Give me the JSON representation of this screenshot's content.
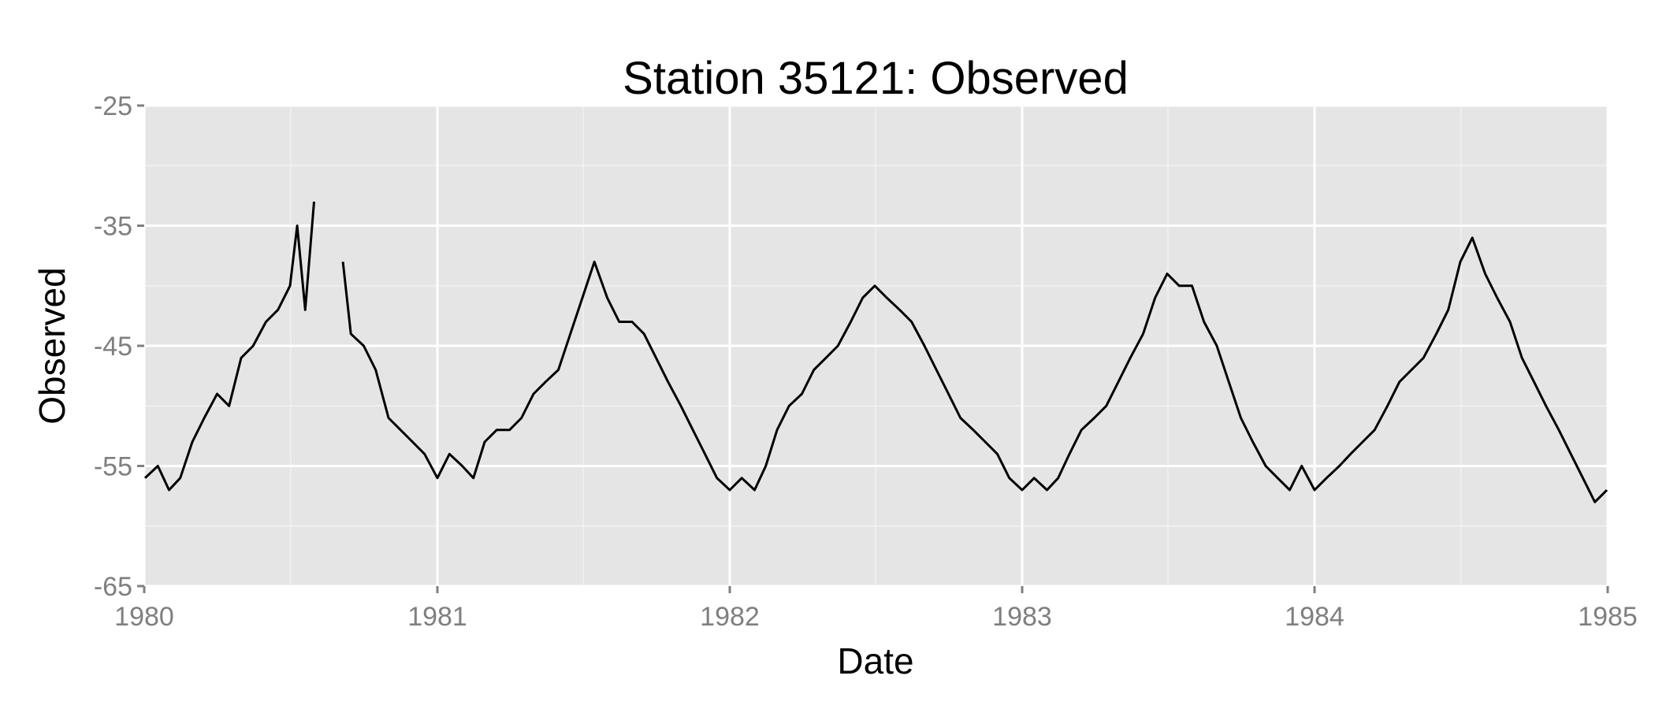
{
  "chart_data": {
    "type": "line",
    "title": "Station 35121: Observed",
    "xlabel": "Date",
    "ylabel": "Observed",
    "x_ticks": [
      "1980",
      "1981",
      "1982",
      "1983",
      "1984",
      "1985"
    ],
    "y_ticks": [
      "-25",
      "-35",
      "-45",
      "-55",
      "-65"
    ],
    "xlim": [
      "1980-01-01",
      "1985-01-01"
    ],
    "ylim": [
      -65,
      -25
    ],
    "grid": true,
    "legend": "none",
    "colors": {
      "panel": "#e5e5e5",
      "line": "#000000",
      "tick_text": "#7f7f7f"
    },
    "series": [
      {
        "color": "#000000",
        "x": [
          "1980-01-02",
          "1980-01-18",
          "1980-02-01",
          "1980-02-15",
          "1980-03-01",
          "1980-03-16",
          "1980-04-01",
          "1980-04-16",
          "1980-05-01",
          "1980-05-16",
          "1980-06-01",
          "1980-06-16",
          "1980-07-01",
          "1980-07-10",
          "1980-07-20",
          "1980-07-31",
          "1980-09-05",
          "1980-09-15",
          "1980-10-01",
          "1980-10-16",
          "1980-11-01",
          "1980-11-16",
          "1980-12-01",
          "1980-12-16",
          "1981-01-01",
          "1981-01-16",
          "1981-02-01",
          "1981-02-15",
          "1981-03-01",
          "1981-03-16",
          "1981-04-01",
          "1981-04-16",
          "1981-05-01",
          "1981-05-16",
          "1981-06-01",
          "1981-06-16",
          "1981-07-01",
          "1981-07-16",
          "1981-08-01",
          "1981-08-16",
          "1981-09-01",
          "1981-09-16",
          "1981-10-01",
          "1981-10-16",
          "1981-11-01",
          "1981-11-16",
          "1981-12-01",
          "1981-12-16",
          "1982-01-01",
          "1982-01-16",
          "1982-02-01",
          "1982-02-15",
          "1982-03-01",
          "1982-03-16",
          "1982-04-01",
          "1982-04-16",
          "1982-05-01",
          "1982-05-16",
          "1982-06-01",
          "1982-06-16",
          "1982-07-01",
          "1982-07-16",
          "1982-08-01",
          "1982-08-16",
          "1982-09-01",
          "1982-09-16",
          "1982-10-01",
          "1982-10-16",
          "1982-11-01",
          "1982-11-16",
          "1982-12-01",
          "1982-12-16",
          "1983-01-01",
          "1983-01-16",
          "1983-02-01",
          "1983-02-15",
          "1983-03-01",
          "1983-03-16",
          "1983-04-01",
          "1983-04-16",
          "1983-05-01",
          "1983-05-16",
          "1983-06-01",
          "1983-06-16",
          "1983-07-01",
          "1983-07-16",
          "1983-08-01",
          "1983-08-16",
          "1983-09-01",
          "1983-09-16",
          "1983-10-01",
          "1983-10-16",
          "1983-11-01",
          "1983-11-16",
          "1983-12-01",
          "1983-12-16",
          "1984-01-01",
          "1984-01-16",
          "1984-02-01",
          "1984-02-15",
          "1984-03-01",
          "1984-03-16",
          "1984-04-01",
          "1984-04-16",
          "1984-05-01",
          "1984-05-16",
          "1984-06-01",
          "1984-06-16",
          "1984-07-01",
          "1984-07-16",
          "1984-08-01",
          "1984-08-16",
          "1984-09-01",
          "1984-09-16",
          "1984-10-01",
          "1984-10-16",
          "1984-11-01",
          "1984-11-16",
          "1984-12-01",
          "1984-12-16",
          "1984-12-31"
        ],
        "values": [
          -56,
          -55,
          -57,
          -56,
          -53,
          -51,
          -49,
          -50,
          -46,
          -45,
          -43,
          -42,
          -40,
          -35,
          -42,
          -33,
          -38,
          -44,
          -45,
          -47,
          -51,
          -52,
          -53,
          -54,
          -56,
          -54,
          -55,
          -56,
          -53,
          -52,
          -52,
          -51,
          -49,
          -48,
          -47,
          -44,
          -41,
          -38,
          -41,
          -43,
          -43,
          -44,
          -46,
          -48,
          -50,
          -52,
          -54,
          -56,
          -57,
          -56,
          -57,
          -55,
          -52,
          -50,
          -49,
          -47,
          -46,
          -45,
          -43,
          -41,
          -40,
          -41,
          -42,
          -43,
          -45,
          -47,
          -49,
          -51,
          -52,
          -53,
          -54,
          -56,
          -57,
          -56,
          -57,
          -56,
          -54,
          -52,
          -51,
          -50,
          -48,
          -46,
          -44,
          -41,
          -39,
          -40,
          -40,
          -43,
          -45,
          -48,
          -51,
          -53,
          -55,
          -56,
          -57,
          -55,
          -57,
          -56,
          -55,
          -54,
          -53,
          -52,
          -50,
          -48,
          -47,
          -46,
          -44,
          -42,
          -38,
          -36,
          -39,
          -41,
          -43,
          -46,
          -48,
          -50,
          -52,
          -54,
          -56,
          -58,
          -57
        ]
      }
    ]
  }
}
